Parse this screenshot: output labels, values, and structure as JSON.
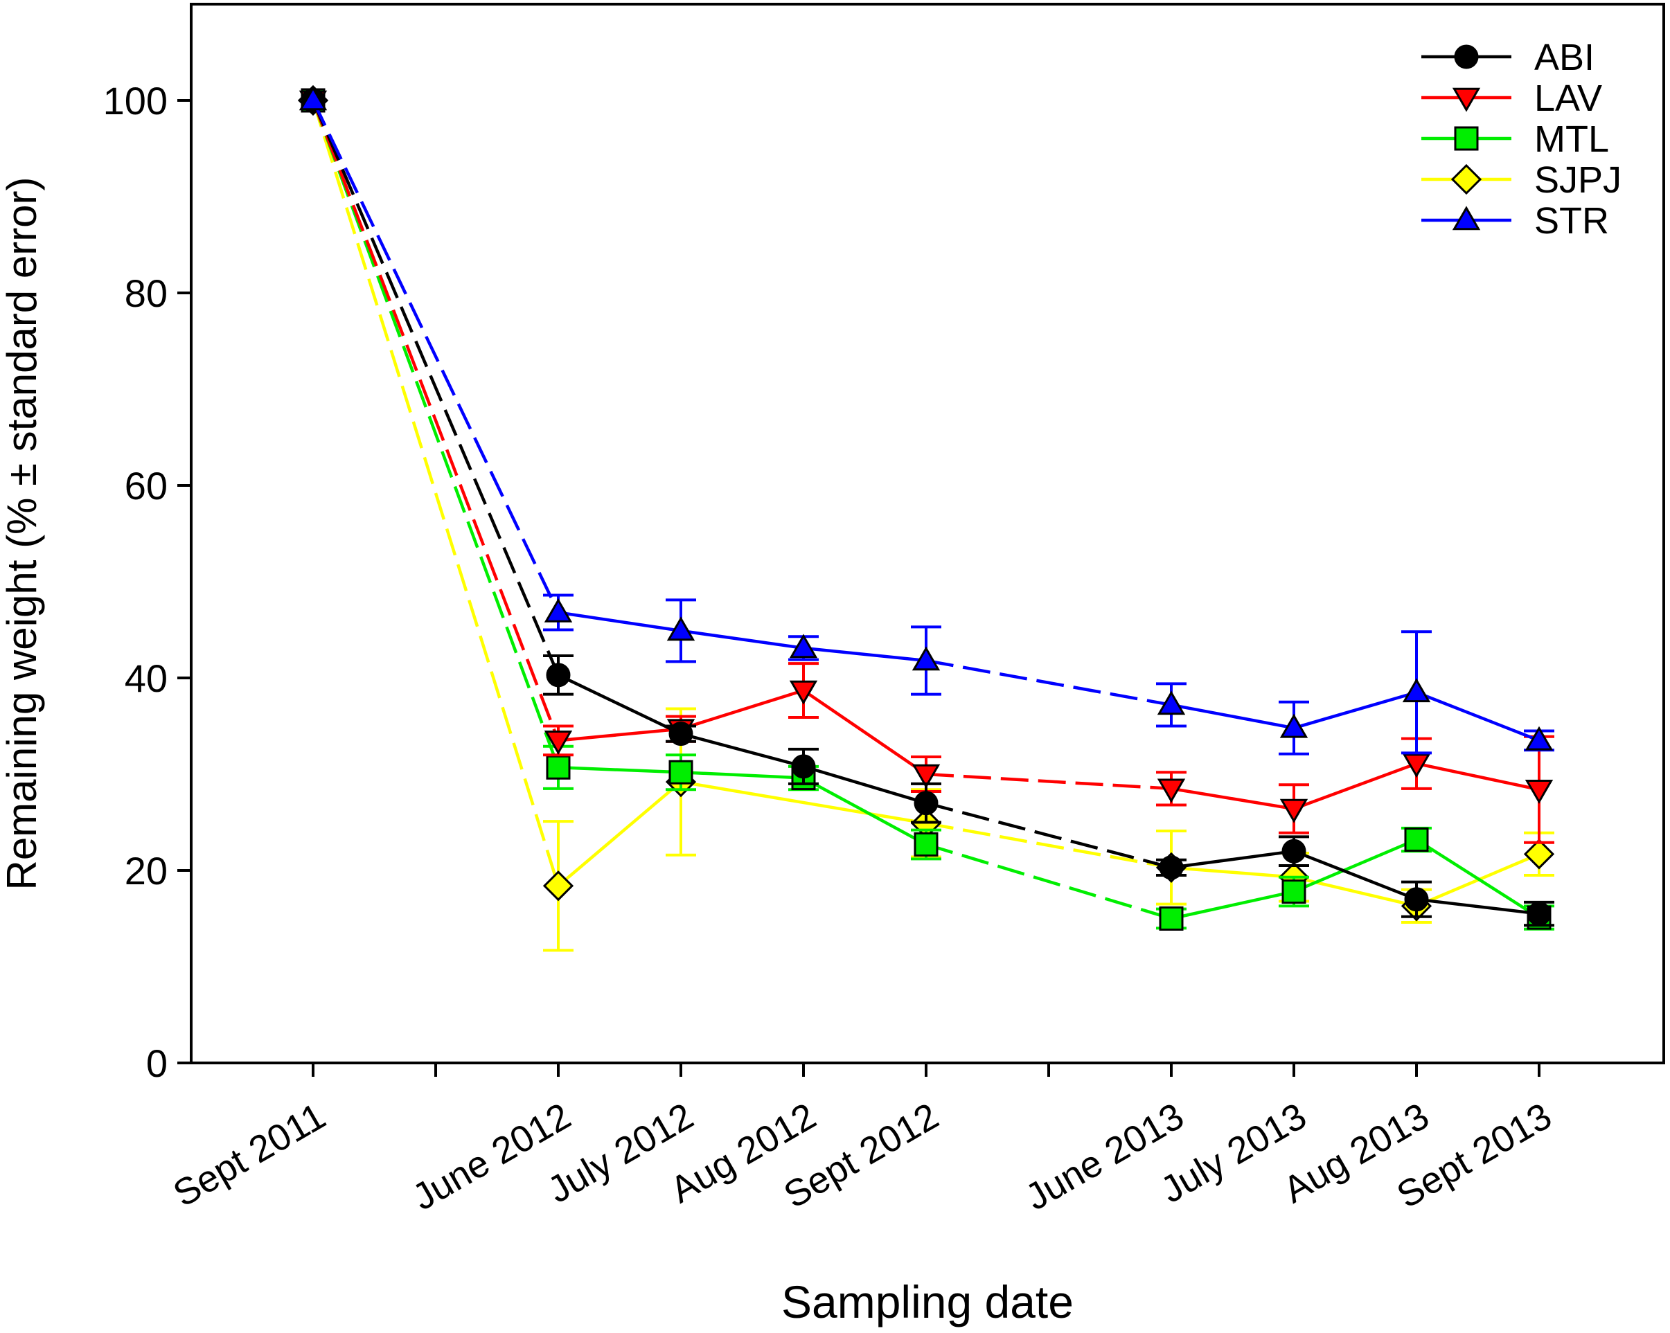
{
  "chart_data": {
    "type": "line",
    "title": "",
    "xlabel": "Sampling date",
    "ylabel": "Remaining weight (% ± standard error)",
    "ylim": [
      0,
      110
    ],
    "yticks": [
      0,
      20,
      40,
      60,
      80,
      100
    ],
    "grid": false,
    "legend_position": "top-right",
    "categories": [
      "Sept 2011",
      "",
      "June 2012",
      "July 2012",
      "Aug 2012",
      "Sept 2012",
      "",
      "June 2013",
      "July 2013",
      "Aug 2013",
      "Sept 2013"
    ],
    "series": [
      {
        "name": "ABI",
        "color": "#000000",
        "marker": "circle",
        "values": [
          100,
          null,
          40.3,
          34.2,
          30.8,
          27.0,
          null,
          20.3,
          22.0,
          17.0,
          15.5
        ],
        "errors": [
          0.5,
          null,
          2.0,
          0.8,
          1.8,
          2.0,
          null,
          0.8,
          1.5,
          1.8,
          1.2
        ]
      },
      {
        "name": "LAV",
        "color": "#ff0000",
        "marker": "triangle-down",
        "values": [
          100,
          null,
          33.5,
          34.7,
          38.7,
          30.0,
          null,
          28.5,
          26.4,
          31.1,
          28.4
        ],
        "errors": [
          0.5,
          null,
          1.5,
          1.3,
          2.8,
          1.8,
          null,
          1.7,
          2.5,
          2.6,
          5.5
        ]
      },
      {
        "name": "MTL",
        "color": "#00ee00",
        "marker": "square",
        "values": [
          100,
          null,
          30.7,
          30.2,
          29.6,
          22.7,
          null,
          15.0,
          17.8,
          23.2,
          15.1
        ],
        "errors": [
          0.5,
          null,
          2.2,
          1.8,
          1.2,
          1.5,
          null,
          1.0,
          1.5,
          1.2,
          1.2
        ]
      },
      {
        "name": "SJPJ",
        "color": "#ffff00",
        "marker": "diamond",
        "values": [
          100,
          null,
          18.4,
          29.2,
          null,
          24.9,
          null,
          20.3,
          19.3,
          16.3,
          21.7
        ],
        "errors": [
          0.5,
          null,
          6.7,
          7.6,
          null,
          3.5,
          null,
          3.8,
          2.5,
          1.7,
          2.2
        ]
      },
      {
        "name": "STR",
        "color": "#0000ff",
        "marker": "triangle-up",
        "values": [
          100,
          null,
          46.8,
          44.9,
          43.1,
          41.8,
          null,
          37.2,
          34.8,
          38.5,
          33.5
        ],
        "errors": [
          0.5,
          null,
          1.8,
          3.2,
          1.2,
          3.5,
          null,
          2.2,
          2.7,
          6.3,
          1.0
        ]
      }
    ]
  }
}
